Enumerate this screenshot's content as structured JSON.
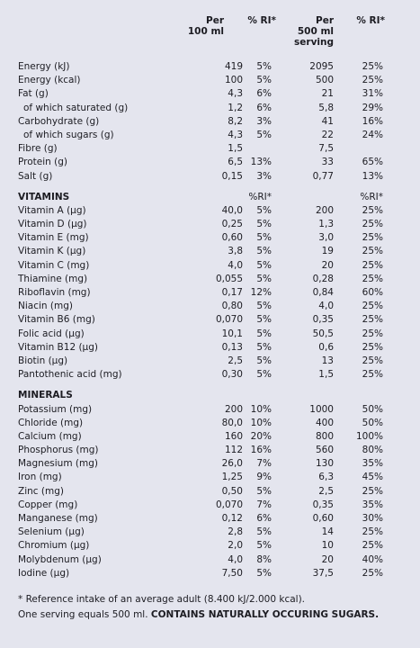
{
  "header": {
    "per100": [
      "Per",
      "100 ml"
    ],
    "ri1": "% RI*",
    "perServing": [
      "Per",
      "500 ml",
      "serving"
    ],
    "ri2": "% RI*"
  },
  "energy": [
    [
      "Energy (kJ)",
      "419",
      "5%",
      "2095",
      "25%"
    ],
    [
      "Energy (kcal)",
      "100",
      "5%",
      "500",
      "25%"
    ],
    [
      "Fat (g)",
      "4,3",
      "6%",
      "21",
      "31%"
    ],
    [
      "of which saturated (g)",
      "1,2",
      "6%",
      "5,8",
      "29%"
    ],
    [
      "Carbohydrate  (g)",
      "8,2",
      "3%",
      "41",
      "16%"
    ],
    [
      "of which sugars (g)",
      "4,3",
      "5%",
      "22",
      "24%"
    ],
    [
      "Fibre (g)",
      "1,5",
      "",
      "7,5",
      ""
    ],
    [
      "Protein (g)",
      "6,5",
      "13%",
      "33",
      "65%"
    ],
    [
      "Salt (g)",
      "0,15",
      "3%",
      "0,77",
      "13%"
    ]
  ],
  "vitamins": {
    "title": "VITAMINS",
    "ri1": "%RI*",
    "ri2": "%RI*",
    "rows": [
      [
        "Vitamin A (µg)",
        "40,0",
        "5%",
        "200",
        "25%"
      ],
      [
        "Vitamin D (µg)",
        "0,25",
        "5%",
        "1,3",
        "25%"
      ],
      [
        "Vitamin E (mg)",
        "0,60",
        "5%",
        "3,0",
        "25%"
      ],
      [
        "Vitamin K (µg)",
        "3,8",
        "5%",
        "19",
        "25%"
      ],
      [
        "Vitamin C (mg)",
        "4,0",
        "5%",
        "20",
        "25%"
      ],
      [
        "Thiamine (mg)",
        "0,055",
        "5%",
        "0,28",
        "25%"
      ],
      [
        "Riboflavin (mg)",
        "0,17",
        "12%",
        "0,84",
        "60%"
      ],
      [
        "Niacin (mg)",
        "0,80",
        "5%",
        "4,0",
        "25%"
      ],
      [
        "Vitamin B6 (mg)",
        "0,070",
        "5%",
        "0,35",
        "25%"
      ],
      [
        "Folic acid (µg)",
        "10,1",
        "5%",
        "50,5",
        "25%"
      ],
      [
        "Vitamin B12 (µg)",
        "0,13",
        "5%",
        "0,6",
        "25%"
      ],
      [
        "Biotin (µg)",
        "2,5",
        "5%",
        "13",
        "25%"
      ],
      [
        "Pantothenic acid (mg)",
        "0,30",
        "5%",
        "1,5",
        "25%"
      ]
    ]
  },
  "minerals": {
    "title": "MINERALS",
    "rows": [
      [
        "Potassium (mg)",
        "200",
        "10%",
        "1000",
        "50%"
      ],
      [
        "Chloride (mg)",
        "80,0",
        "10%",
        "400",
        "50%"
      ],
      [
        "Calcium (mg)",
        "160",
        "20%",
        "800",
        "100%"
      ],
      [
        "Phosphorus (mg)",
        "112",
        "16%",
        "560",
        "80%"
      ],
      [
        "Magnesium (mg)",
        "26,0",
        "7%",
        "130",
        "35%"
      ],
      [
        "Iron (mg)",
        "1,25",
        "9%",
        "6,3",
        "45%"
      ],
      [
        "Zinc (mg)",
        "0,50",
        "5%",
        "2,5",
        "25%"
      ],
      [
        "Copper (mg)",
        "0,070",
        "7%",
        "0,35",
        "35%"
      ],
      [
        "Manganese (mg)",
        "0,12",
        "6%",
        "0,60",
        "30%"
      ],
      [
        "Selenium (µg)",
        "2,8",
        "5%",
        "14",
        "25%"
      ],
      [
        "Chromium (µg)",
        "2,0",
        "5%",
        "10",
        "25%"
      ],
      [
        "Molybdenum (µg)",
        "4,0",
        "8%",
        "20",
        "40%"
      ],
      [
        "Iodine (µg)",
        "7,50",
        "5%",
        "37,5",
        "25%"
      ]
    ]
  },
  "footer": {
    "line1": "* Reference intake of an average adult (8.400 kJ/2.000 kcal).",
    "line2_plain": "One serving equals 500 ml. ",
    "line2_bold": "CONTAINS NATURALLY OCCURING SUGARS."
  }
}
